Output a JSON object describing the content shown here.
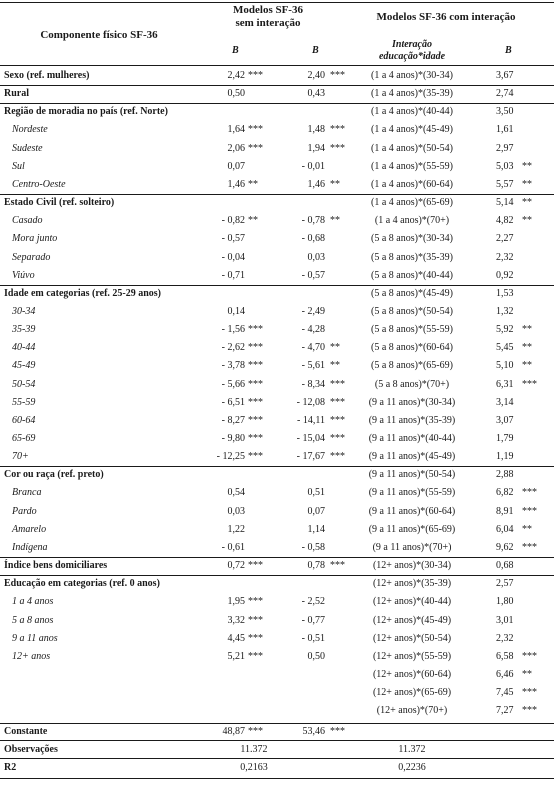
{
  "header": {
    "component_label": "Componente físico SF-36",
    "model1_title_line1": "Modelos SF-36",
    "model1_title_line2": "sem interação",
    "model2_title": "Modelos SF-36 com interação",
    "interaction_line1": "Interação",
    "interaction_line2": "educação*idade",
    "b_label": "B"
  },
  "left_rows": [
    {
      "label": "Sexo (ref. mulheres)",
      "kind": "bold-sep",
      "b1": "2,42",
      "s1": "***",
      "b2": "2,40",
      "s2": "***"
    },
    {
      "label": "Rural",
      "kind": "bold-sep",
      "b1": "0,50",
      "s1": "",
      "b2": "0,43",
      "s2": ""
    },
    {
      "label": "Região de moradia no país (ref. Norte)",
      "kind": "bold-sep",
      "b1": "",
      "s1": "",
      "b2": "",
      "s2": ""
    },
    {
      "label": "Nordeste",
      "kind": "italic",
      "b1": "1,64",
      "s1": "***",
      "b2": "1,48",
      "s2": "***"
    },
    {
      "label": "Sudeste",
      "kind": "italic",
      "b1": "2,06",
      "s1": "***",
      "b2": "1,94",
      "s2": "***"
    },
    {
      "label": "Sul",
      "kind": "italic",
      "b1": "0,07",
      "s1": "",
      "b2": "- 0,01",
      "s2": ""
    },
    {
      "label": "Centro-Oeste",
      "kind": "italic",
      "b1": "1,46",
      "s1": "**",
      "b2": "1,46",
      "s2": "**"
    },
    {
      "label": "Estado Civil (ref. solteiro)",
      "kind": "bold-sep",
      "b1": "",
      "s1": "",
      "b2": "",
      "s2": ""
    },
    {
      "label": "Casado",
      "kind": "italic",
      "b1": "- 0,82",
      "s1": "**",
      "b2": "- 0,78",
      "s2": "**"
    },
    {
      "label": "Mora junto",
      "kind": "italic",
      "b1": "- 0,57",
      "s1": "",
      "b2": "- 0,68",
      "s2": ""
    },
    {
      "label": "Separado",
      "kind": "italic",
      "b1": "- 0,04",
      "s1": "",
      "b2": "0,03",
      "s2": ""
    },
    {
      "label": "Viúvo",
      "kind": "italic",
      "b1": "- 0,71",
      "s1": "",
      "b2": "- 0,57",
      "s2": ""
    },
    {
      "label": "Idade em categorias (ref. 25-29 anos)",
      "kind": "bold-sep",
      "b1": "",
      "s1": "",
      "b2": "",
      "s2": ""
    },
    {
      "label": "30-34",
      "kind": "italic",
      "b1": "0,14",
      "s1": "",
      "b2": "- 2,49",
      "s2": ""
    },
    {
      "label": "35-39",
      "kind": "italic",
      "b1": "- 1,56",
      "s1": "***",
      "b2": "- 4,28",
      "s2": ""
    },
    {
      "label": "40-44",
      "kind": "italic",
      "b1": "- 2,62",
      "s1": "***",
      "b2": "- 4,70",
      "s2": "**"
    },
    {
      "label": "45-49",
      "kind": "italic",
      "b1": "- 3,78",
      "s1": "***",
      "b2": "- 5,61",
      "s2": "**"
    },
    {
      "label": "50-54",
      "kind": "italic",
      "b1": "- 5,66",
      "s1": "***",
      "b2": "- 8,34",
      "s2": "***"
    },
    {
      "label": "55-59",
      "kind": "italic",
      "b1": "- 6,51",
      "s1": "***",
      "b2": "- 12,08",
      "s2": "***"
    },
    {
      "label": "60-64",
      "kind": "italic",
      "b1": "- 8,27",
      "s1": "***",
      "b2": "- 14,11",
      "s2": "***"
    },
    {
      "label": "65-69",
      "kind": "italic",
      "b1": "- 9,80",
      "s1": "***",
      "b2": "- 15,04",
      "s2": "***"
    },
    {
      "label": "70+",
      "kind": "italic",
      "b1": "- 12,25",
      "s1": "***",
      "b2": "- 17,67",
      "s2": "***"
    },
    {
      "label": "Cor ou raça (ref. preto)",
      "kind": "bold-sep",
      "b1": "",
      "s1": "",
      "b2": "",
      "s2": ""
    },
    {
      "label": "Branca",
      "kind": "italic",
      "b1": "0,54",
      "s1": "",
      "b2": "0,51",
      "s2": ""
    },
    {
      "label": "Pardo",
      "kind": "italic",
      "b1": "0,03",
      "s1": "",
      "b2": "0,07",
      "s2": ""
    },
    {
      "label": "Amarelo",
      "kind": "italic",
      "b1": "1,22",
      "s1": "",
      "b2": "1,14",
      "s2": ""
    },
    {
      "label": "Indígena",
      "kind": "italic",
      "b1": "- 0,61",
      "s1": "",
      "b2": "- 0,58",
      "s2": ""
    },
    {
      "label": "Índice bens domiciliares",
      "kind": "bold-sep",
      "b1": "0,72",
      "s1": "***",
      "b2": "0,78",
      "s2": "***"
    },
    {
      "label": "Educação em categorias (ref. 0 anos)",
      "kind": "bold-sep",
      "b1": "",
      "s1": "",
      "b2": "",
      "s2": ""
    },
    {
      "label": "1 a 4 anos",
      "kind": "italic",
      "b1": "1,95",
      "s1": "***",
      "b2": "- 2,52",
      "s2": ""
    },
    {
      "label": "5 a 8 anos",
      "kind": "italic",
      "b1": "3,32",
      "s1": "***",
      "b2": "- 0,77",
      "s2": ""
    },
    {
      "label": "9 a 11 anos",
      "kind": "italic",
      "b1": "4,45",
      "s1": "***",
      "b2": "- 0,51",
      "s2": ""
    },
    {
      "label": "12+ anos",
      "kind": "italic",
      "b1": "5,21",
      "s1": "***",
      "b2": "0,50",
      "s2": ""
    }
  ],
  "right_rows": [
    {
      "term": "(1 a 4 anos)*(30-34)",
      "b": "3,67",
      "s": ""
    },
    {
      "term": "(1 a 4 anos)*(35-39)",
      "b": "2,74",
      "s": ""
    },
    {
      "term": "(1 a 4 anos)*(40-44)",
      "b": "3,50",
      "s": ""
    },
    {
      "term": "(1 a 4 anos)*(45-49)",
      "b": "1,61",
      "s": ""
    },
    {
      "term": "(1 a 4 anos)*(50-54)",
      "b": "2,97",
      "s": ""
    },
    {
      "term": "(1 a 4 anos)*(55-59)",
      "b": "5,03",
      "s": "**"
    },
    {
      "term": "(1 a 4 anos)*(60-64)",
      "b": "5,57",
      "s": "**"
    },
    {
      "term": "(1 a 4 anos)*(65-69)",
      "b": "5,14",
      "s": "**"
    },
    {
      "term": "(1 a 4 anos)*(70+)",
      "b": "4,82",
      "s": "**"
    },
    {
      "term": "(5 a 8 anos)*(30-34)",
      "b": "2,27",
      "s": ""
    },
    {
      "term": "(5 a 8 anos)*(35-39)",
      "b": "2,32",
      "s": ""
    },
    {
      "term": "(5 a 8 anos)*(40-44)",
      "b": "0,92",
      "s": ""
    },
    {
      "term": "(5 a 8 anos)*(45-49)",
      "b": "1,53",
      "s": ""
    },
    {
      "term": "(5 a 8 anos)*(50-54)",
      "b": "1,32",
      "s": ""
    },
    {
      "term": "(5 a 8 anos)*(55-59)",
      "b": "5,92",
      "s": "**"
    },
    {
      "term": "(5 a 8 anos)*(60-64)",
      "b": "5,45",
      "s": "**"
    },
    {
      "term": "(5 a 8 anos)*(65-69)",
      "b": "5,10",
      "s": "**"
    },
    {
      "term": "(5 a 8 anos)*(70+)",
      "b": "6,31",
      "s": "***"
    },
    {
      "term": "(9 a 11 anos)*(30-34)",
      "b": "3,14",
      "s": ""
    },
    {
      "term": "(9 a 11 anos)*(35-39)",
      "b": "3,07",
      "s": ""
    },
    {
      "term": "(9 a 11 anos)*(40-44)",
      "b": "1,79",
      "s": ""
    },
    {
      "term": "(9 a 11 anos)*(45-49)",
      "b": "1,19",
      "s": ""
    },
    {
      "term": "(9 a 11 anos)*(50-54)",
      "b": "2,88",
      "s": ""
    },
    {
      "term": "(9 a 11 anos)*(55-59)",
      "b": "6,82",
      "s": "***"
    },
    {
      "term": "(9 a 11 anos)*(60-64)",
      "b": "8,91",
      "s": "***"
    },
    {
      "term": "(9 a 11 anos)*(65-69)",
      "b": "6,04",
      "s": "**"
    },
    {
      "term": "(9 a 11 anos)*(70+)",
      "b": "9,62",
      "s": "***"
    },
    {
      "term": "(12+ anos)*(30-34)",
      "b": "0,68",
      "s": ""
    },
    {
      "term": "(12+ anos)*(35-39)",
      "b": "2,57",
      "s": ""
    },
    {
      "term": "(12+ anos)*(40-44)",
      "b": "1,80",
      "s": ""
    },
    {
      "term": "(12+ anos)*(45-49)",
      "b": "3,01",
      "s": ""
    },
    {
      "term": "(12+ anos)*(50-54)",
      "b": "2,32",
      "s": ""
    },
    {
      "term": "(12+ anos)*(55-59)",
      "b": "6,58",
      "s": "***"
    },
    {
      "term": "(12+ anos)*(60-64)",
      "b": "6,46",
      "s": "**"
    },
    {
      "term": "(12+ anos)*(65-69)",
      "b": "7,45",
      "s": "***"
    },
    {
      "term": "(12+ anos)*(70+)",
      "b": "7,27",
      "s": "***"
    }
  ],
  "footer": {
    "constante": {
      "label": "Constante",
      "b1": "48,87",
      "s1": "***",
      "b2": "53,46",
      "s2": "***"
    },
    "observacoes": {
      "label": "Observações",
      "v1": "11.372",
      "v2": "11.372"
    },
    "r2": {
      "label": "R2",
      "v1": "0,2163",
      "v2": "0,2236"
    }
  }
}
